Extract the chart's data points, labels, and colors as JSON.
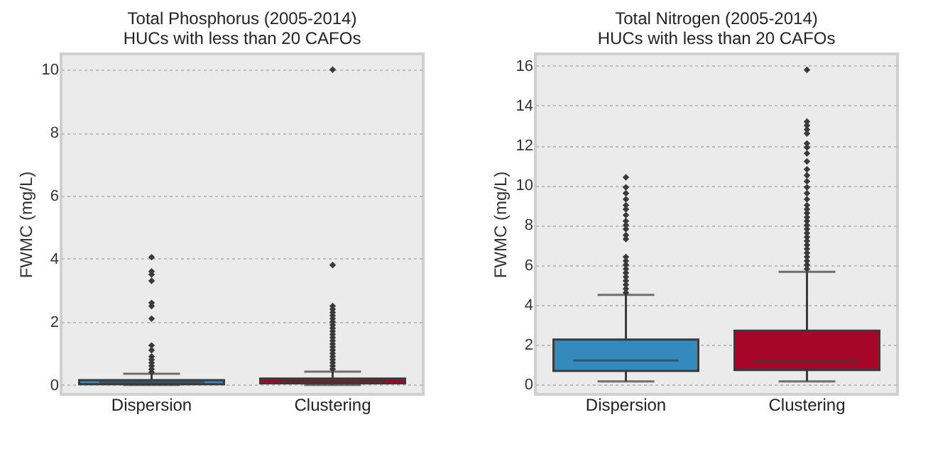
{
  "chart_data": [
    {
      "type": "box",
      "title": "Total Phosphorus (2005-2014)\nHUCs with less than 20 CAFOs",
      "ylabel": "FWMC (mg/L)",
      "categories": [
        "Dispersion",
        "Clustering"
      ],
      "colors": [
        "#348abd",
        "#a60628"
      ],
      "ylim": [
        -0.3,
        10.5
      ],
      "yticks": [
        0,
        2,
        4,
        6,
        8,
        10
      ],
      "grid": "y",
      "boxes": [
        {
          "low": 0,
          "q1": 0.02,
          "median": 0.08,
          "q3": 0.15,
          "high": 0.35,
          "outliers": [
            0.4,
            0.5,
            0.6,
            0.7,
            0.8,
            0.9,
            1.1,
            1.25,
            2.1,
            2.5,
            2.6,
            3.3,
            3.5,
            3.6,
            4.05
          ]
        },
        {
          "low": 0,
          "q1": 0.05,
          "median": 0.12,
          "q3": 0.2,
          "high": 0.42,
          "outliers": [
            0.5,
            0.6,
            0.7,
            0.8,
            0.9,
            1.0,
            1.1,
            1.2,
            1.3,
            1.4,
            1.5,
            1.6,
            1.7,
            1.8,
            1.9,
            2.0,
            2.1,
            2.2,
            2.3,
            2.4,
            2.5,
            3.8,
            10.0
          ]
        }
      ]
    },
    {
      "type": "box",
      "title": "Total Nitrogen (2005-2014)\nHUCs with less than 20 CAFOs",
      "ylabel": "FWMC (mg/L)",
      "categories": [
        "Dispersion",
        "Clustering"
      ],
      "colors": [
        "#348abd",
        "#a60628"
      ],
      "ylim": [
        -0.5,
        16.6
      ],
      "yticks": [
        0,
        2,
        4,
        6,
        8,
        10,
        12,
        14,
        16
      ],
      "grid": "y",
      "boxes": [
        {
          "low": 0.15,
          "q1": 0.68,
          "median": 1.2,
          "q3": 2.25,
          "high": 4.5,
          "outliers": [
            4.6,
            4.8,
            5.0,
            5.2,
            5.4,
            5.6,
            5.8,
            6.0,
            6.2,
            6.4,
            7.3,
            7.5,
            7.8,
            8.0,
            8.2,
            8.5,
            8.8,
            9.0,
            9.3,
            9.6,
            9.9,
            10.4
          ]
        },
        {
          "low": 0.15,
          "q1": 0.72,
          "median": 1.15,
          "q3": 2.7,
          "high": 5.65,
          "outliers": [
            5.8,
            6.0,
            6.2,
            6.4,
            6.6,
            6.8,
            7.0,
            7.2,
            7.4,
            7.6,
            7.8,
            8.0,
            8.2,
            8.4,
            8.6,
            8.8,
            9.0,
            9.3,
            9.6,
            9.9,
            10.2,
            10.5,
            10.8,
            11.2,
            11.6,
            11.9,
            12.1,
            12.6,
            12.8,
            13.0,
            13.2,
            15.8
          ]
        }
      ]
    }
  ]
}
